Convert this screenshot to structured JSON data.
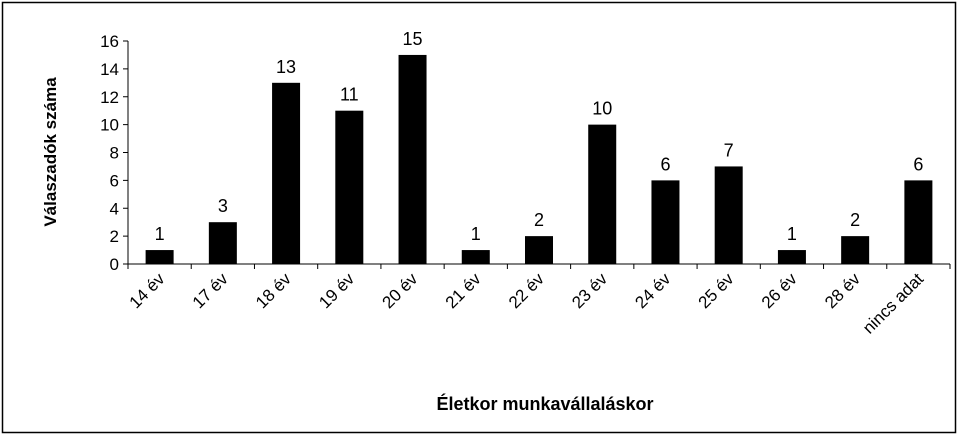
{
  "chart_data": {
    "type": "bar",
    "x_label": "Életkor munkavállaláskor",
    "y_label": "Válaszadók száma",
    "categories": [
      "14 év",
      "17 év",
      "18 év",
      "19 év",
      "20 év",
      "21 év",
      "22 év",
      "23 év",
      "24 év",
      "25 év",
      "26 év",
      "28 év",
      "nincs adat"
    ],
    "values": [
      1,
      3,
      13,
      11,
      15,
      1,
      2,
      10,
      6,
      7,
      1,
      2,
      6
    ],
    "color": "#000000",
    "ylim": [
      0,
      16
    ],
    "yticks": [
      0,
      2,
      4,
      6,
      8,
      10,
      12,
      14,
      16
    ],
    "grid": false
  }
}
